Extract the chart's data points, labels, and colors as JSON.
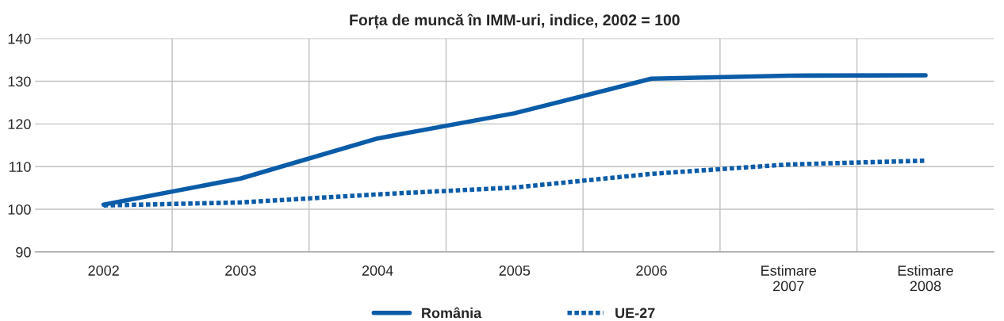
{
  "chart_data": {
    "type": "line",
    "title": "Forța de muncă în IMM-uri, indice, 2002 = 100",
    "categories": [
      "2002",
      "2003",
      "2004",
      "2005",
      "2006",
      "Estimare\n2007",
      "Estimare\n2008"
    ],
    "series": [
      {
        "name": "România",
        "color": "#0b5ca8",
        "line_style": "solid",
        "values": [
          101.1,
          107.2,
          116.6,
          122.5,
          130.6,
          131.3,
          131.4
        ]
      },
      {
        "name": "UE-27",
        "color": "#0b5ca8",
        "line_style": "dotted",
        "values": [
          100.9,
          101.6,
          103.5,
          105.1,
          108.3,
          110.5,
          111.4
        ]
      }
    ],
    "ylim": [
      90,
      140
    ],
    "yticks": [
      90,
      100,
      110,
      120,
      130,
      140
    ],
    "grid": true,
    "legend": "bottom",
    "marker": "none"
  }
}
